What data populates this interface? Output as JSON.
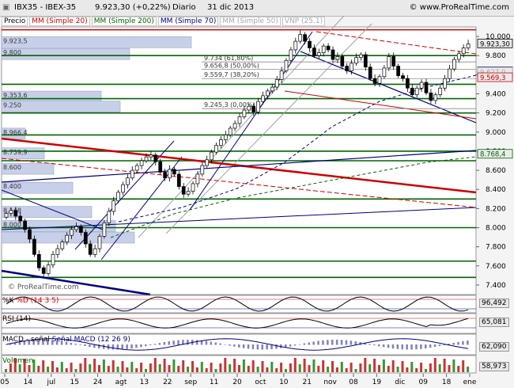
{
  "header": {
    "symbol": "IBX35 - IBEX-35",
    "quote": "9.923,30 (+0,22%)",
    "interval": "Diario",
    "date": "31 dic 2013",
    "site": "© www.ProRealTime.com"
  },
  "watermark": "© ProRealTime.com",
  "legend": [
    {
      "text": "Precio",
      "color": "#000000"
    },
    {
      "text": "MM (Simple 20)",
      "color": "#cc0000"
    },
    {
      "text": "MM (Simple 200)",
      "color": "#006600"
    },
    {
      "text": "MM (Simple 70)",
      "color": "#000080"
    },
    {
      "text": "MM (Simple 50)",
      "color": "#a8a8a8"
    },
    {
      "text": "VNP (25.1)",
      "color": "#a8a8a8"
    }
  ],
  "chart_data": {
    "type": "candlestick",
    "ylim": [
      7300,
      10100
    ],
    "y_ticks": [
      "7.400",
      "7.600",
      "7.800",
      "8.000",
      "8.200",
      "8.400",
      "8.600",
      "8.800",
      "9.000",
      "9.200",
      "9.400",
      "9.600",
      "9.800",
      "10.000"
    ],
    "x_labels": [
      "05",
      "14",
      "jul",
      "15",
      "24",
      "agt",
      "13",
      "22",
      "sep",
      "11",
      "20",
      "oct",
      "10",
      "21",
      "nov",
      "08",
      "19",
      "dic",
      "09",
      "18",
      "ene"
    ],
    "closes": [
      8150,
      8180,
      8120,
      8070,
      7980,
      7880,
      7720,
      7580,
      7520,
      7610,
      7720,
      7780,
      7850,
      7920,
      7980,
      8010,
      7950,
      7830,
      7720,
      7780,
      7910,
      8050,
      8170,
      8280,
      8370,
      8450,
      8520,
      8600,
      8650,
      8700,
      8740,
      8760,
      8690,
      8580,
      8520,
      8610,
      8560,
      8430,
      8350,
      8380,
      8460,
      8560,
      8650,
      8710,
      8790,
      8860,
      8920,
      8970,
      9040,
      9090,
      9160,
      9230,
      9270,
      9210,
      9320,
      9380,
      9430,
      9470,
      9550,
      9640,
      9750,
      9860,
      9950,
      10020,
      9950,
      9880,
      9800,
      9830,
      9900,
      9860,
      9760,
      9790,
      9690,
      9640,
      9720,
      9780,
      9810,
      9680,
      9560,
      9510,
      9580,
      9670,
      9790,
      9690,
      9590,
      9560,
      9460,
      9390,
      9460,
      9520,
      9410,
      9330,
      9390,
      9460,
      9560,
      9660,
      9760,
      9820,
      9880,
      9923
    ],
    "price_labels": [
      {
        "value": 9923.3,
        "text": "9.923,30",
        "color": "#000000"
      },
      {
        "value": 9631.9,
        "text": "9.631,9",
        "color": "#000080"
      },
      {
        "value": 9627.0,
        "text": "9.627,0",
        "color": "#a8a8a8"
      },
      {
        "value": 9569.3,
        "text": "9.569,3",
        "color": "#cc0000"
      },
      {
        "value": 8768.4,
        "text": "8.768,4",
        "color": "#006600"
      }
    ],
    "fibonacci": [
      {
        "value": 9734,
        "text": "9.734 (61,80%)"
      },
      {
        "value": 9656.8,
        "text": "9.656,8 (50,00%)"
      },
      {
        "value": 9559.7,
        "text": "9.559,7 (38,20%)"
      },
      {
        "value": 9245.3,
        "text": "9.245,3 (0,00%)"
      }
    ],
    "horizontal_levels": [
      10070,
      9800,
      9500,
      9350,
      9200,
      8970,
      8800,
      8700,
      8300,
      8000,
      7650,
      7480
    ],
    "volume_profile": [
      {
        "value": 9923.5,
        "text": "9.923,5",
        "width": 0.4
      },
      {
        "value": 9800,
        "text": "9.800",
        "width": 0.27
      },
      {
        "value": 9353.6,
        "text": "9.353,6",
        "width": 0.21
      },
      {
        "value": 9250,
        "text": "9.250",
        "width": 0.25
      },
      {
        "value": 8966.4,
        "text": "8.966,4",
        "width": 0.05
      },
      {
        "value": 8759.9,
        "text": "8.759,9",
        "width": 0.09
      },
      {
        "value": 8600,
        "text": "8.600",
        "width": 0.11
      },
      {
        "value": 8400,
        "text": "8.400",
        "width": 0.15
      },
      {
        "value": 8148,
        "text": "8.148",
        "width": 0.19
      },
      {
        "value": 8000,
        "text": "8.000",
        "width": 0.24
      },
      {
        "value": 7880,
        "text": "",
        "width": 0.28
      }
    ],
    "indicators": [
      {
        "name": "%K",
        "extra": "%D (14 3 5)",
        "value_text": "96,492",
        "color": "#800080"
      },
      {
        "name": "RSI (14)",
        "extra": "",
        "value_text": "65,081",
        "color": "#000000"
      },
      {
        "name": "MACD - señal",
        "extra": "Señal  MACD (12 26 9)",
        "value_text": "62,090",
        "color": "#000080"
      },
      {
        "name": "Volumen",
        "extra": "",
        "value_text": "58,973",
        "color": "#cc0000"
      }
    ]
  }
}
